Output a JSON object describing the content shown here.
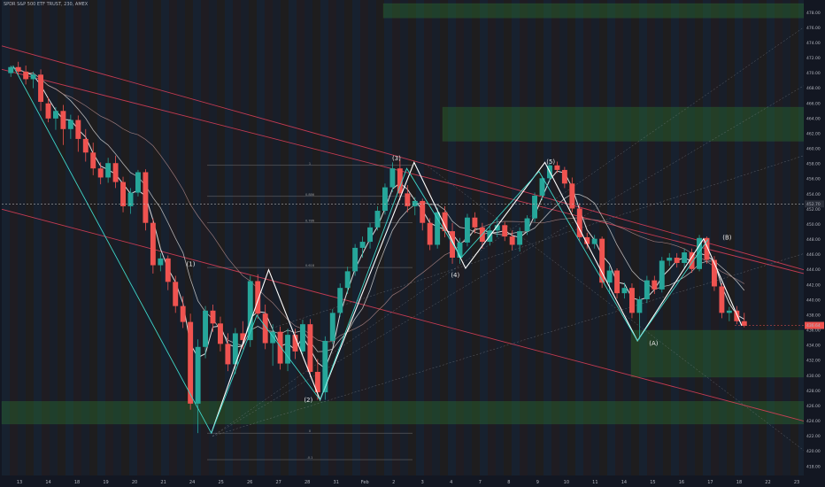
{
  "header": {
    "title": "SPDR S&P 500 ETF TRUST, 230, AMEX"
  },
  "colors": {
    "background": "#131722",
    "up": "#26a69a",
    "down": "#ef5350",
    "zone": "#2e7d32",
    "channel": "#e0405a",
    "cyan": "#3fd6c8",
    "white": "#ffffff",
    "price_tag": "#ef5350"
  },
  "chart_data": {
    "type": "candlestick",
    "y_axis": {
      "min": 416.8,
      "max": 479.2,
      "ticks": [
        418,
        420,
        422,
        424,
        426,
        428,
        430,
        432,
        434,
        436,
        438,
        440,
        442,
        444,
        446,
        448,
        450,
        452,
        454,
        456,
        458,
        460,
        462,
        464,
        466,
        468,
        470,
        472,
        474,
        476,
        478
      ]
    },
    "x_axis": {
      "labels": [
        "13",
        "14",
        "18",
        "19",
        "20",
        "21",
        "24",
        "25",
        "26",
        "27",
        "28",
        "31",
        "Feb",
        "2",
        "3",
        "4",
        "7",
        "8",
        "9",
        "10",
        "11",
        "14",
        "15",
        "16",
        "17",
        "18",
        "22",
        "23"
      ]
    },
    "last_price": "436.64",
    "ref_price": "452.70",
    "wave_labels": [
      {
        "text": "(1)",
        "x": 12.5,
        "y": 444.5
      },
      {
        "text": "(2)",
        "x": 20.5,
        "y": 426.5
      },
      {
        "text": "(3)",
        "x": 26.5,
        "y": 458.5
      },
      {
        "text": "(4)",
        "x": 30.5,
        "y": 443.0
      },
      {
        "text": "(5)",
        "x": 37,
        "y": 458
      },
      {
        "text": "(A)",
        "x": 44,
        "y": 434
      },
      {
        "text": "(B)",
        "x": 49,
        "y": 448
      }
    ],
    "fib_levels": [
      {
        "text": "1",
        "price": 457.8
      },
      {
        "text": "0.886",
        "price": 453.7
      },
      {
        "text": "0.786",
        "price": 450.2
      },
      {
        "text": "0.618",
        "price": 444.3
      },
      {
        "text": "0",
        "price": 422.4
      },
      {
        "text": "-0.1",
        "price": 418.9
      }
    ],
    "candles": [
      [
        470,
        471,
        469.5,
        470.8
      ],
      [
        470.8,
        471.5,
        469.8,
        470.2
      ],
      [
        470.2,
        471,
        468.5,
        469.2
      ],
      [
        469.2,
        470.2,
        468,
        469.8
      ],
      [
        469.8,
        470.5,
        465,
        466.2
      ],
      [
        466,
        466.8,
        463.5,
        464
      ],
      [
        464,
        465.5,
        462.5,
        465
      ],
      [
        465,
        465.8,
        460.5,
        462.6
      ],
      [
        462.6,
        464.5,
        461.3,
        463.8
      ],
      [
        463.8,
        464.4,
        459.6,
        461.3
      ],
      [
        461.3,
        462.6,
        458.3,
        459.5
      ],
      [
        459.5,
        460.8,
        456.5,
        457.4
      ],
      [
        457.4,
        458.2,
        455.3,
        456.2
      ],
      [
        456.2,
        458.8,
        455.5,
        458.1
      ],
      [
        458.1,
        459.1,
        454.8,
        455.6
      ],
      [
        455.6,
        456.3,
        451.6,
        452.4
      ],
      [
        452.4,
        454.8,
        451.4,
        454.2
      ],
      [
        454.2,
        457.2,
        453.7,
        456.9
      ],
      [
        456.9,
        457.3,
        449.2,
        450.2
      ],
      [
        450.2,
        450.8,
        443.5,
        444.6
      ],
      [
        444.6,
        446.2,
        443.8,
        445.5
      ],
      [
        445.5,
        445.9,
        441.3,
        442.4
      ],
      [
        442.4,
        443.2,
        438.3,
        439.2
      ],
      [
        439.2,
        440.5,
        436.3,
        437.1
      ],
      [
        437.1,
        438.2,
        425.5,
        426.3
      ],
      [
        426.3,
        434.8,
        422.4,
        433.8
      ],
      [
        433.8,
        439.2,
        432.3,
        438.6
      ],
      [
        438.6,
        439.4,
        435.8,
        436.9
      ],
      [
        436.9,
        437.8,
        433.2,
        434.2
      ],
      [
        434.2,
        435.6,
        430.6,
        431.5
      ],
      [
        431.5,
        436.3,
        430.2,
        435.6
      ],
      [
        435.6,
        437.2,
        433.5,
        434.7
      ],
      [
        434.7,
        443.2,
        433.8,
        442.5
      ],
      [
        442.5,
        443.4,
        437.5,
        438.2
      ],
      [
        438.2,
        439.4,
        433.5,
        434.3
      ],
      [
        434.3,
        436.8,
        431.3,
        435.8
      ],
      [
        435.8,
        436.5,
        430.8,
        431.6
      ],
      [
        431.6,
        436.2,
        430.6,
        435.4
      ],
      [
        435.4,
        436.2,
        432.2,
        433.2
      ],
      [
        433.2,
        437.4,
        432.8,
        436.8
      ],
      [
        436.8,
        437.5,
        429.8,
        430.5
      ],
      [
        430.5,
        432.2,
        426.8,
        427.8
      ],
      [
        427.8,
        435.2,
        426.8,
        434.6
      ],
      [
        434.6,
        438.8,
        434.2,
        438.3
      ],
      [
        438.3,
        442.2,
        437.8,
        441.6
      ],
      [
        441.6,
        444.4,
        440.8,
        443.8
      ],
      [
        443.8,
        447.4,
        443.2,
        446.9
      ],
      [
        446.9,
        448.4,
        445.6,
        447.7
      ],
      [
        447.7,
        450.2,
        446.8,
        449.6
      ],
      [
        449.6,
        452.4,
        449.2,
        451.8
      ],
      [
        451.8,
        455.4,
        451.3,
        454.9
      ],
      [
        454.9,
        458.2,
        454.3,
        457.4
      ],
      [
        457.4,
        458.6,
        453.2,
        454.1
      ],
      [
        454.1,
        455.2,
        451.6,
        452.4
      ],
      [
        452.4,
        453.6,
        451.2,
        453.1
      ],
      [
        453.1,
        453.4,
        449.2,
        450.2
      ],
      [
        450.2,
        450.8,
        446.6,
        447.3
      ],
      [
        447.3,
        452.2,
        446.8,
        451.6
      ],
      [
        451.6,
        452.4,
        448.3,
        449.1
      ],
      [
        449.1,
        450.2,
        444.8,
        445.6
      ],
      [
        445.6,
        448.2,
        444.8,
        447.6
      ],
      [
        447.6,
        451.4,
        447.1,
        450.9
      ],
      [
        450.9,
        451.6,
        448.8,
        449.6
      ],
      [
        449.6,
        450.2,
        446.8,
        447.7
      ],
      [
        447.7,
        449.8,
        447.2,
        449.2
      ],
      [
        449.2,
        450.8,
        448.3,
        449.9
      ],
      [
        449.9,
        450.3,
        447.8,
        448.4
      ],
      [
        448.4,
        449.2,
        446.6,
        447.3
      ],
      [
        447.3,
        449.6,
        446.4,
        449.1
      ],
      [
        449.1,
        451.2,
        448.6,
        450.8
      ],
      [
        450.8,
        454.2,
        450.3,
        453.8
      ],
      [
        453.8,
        456.4,
        453.2,
        456.1
      ],
      [
        456.1,
        458.2,
        455.6,
        457.8
      ],
      [
        457.8,
        458.3,
        456.8,
        457.2
      ],
      [
        457.2,
        457.6,
        454.8,
        455.4
      ],
      [
        455.4,
        456.2,
        451.6,
        452.1
      ],
      [
        452.1,
        452.8,
        447.8,
        448.3
      ],
      [
        448.3,
        448.9,
        446.8,
        447.4
      ],
      [
        447.4,
        448.6,
        446.8,
        448.1
      ],
      [
        448.1,
        448.4,
        441.6,
        442.3
      ],
      [
        442.3,
        444.5,
        440.8,
        443.9
      ],
      [
        443.9,
        444.2,
        440.2,
        440.9
      ],
      [
        440.9,
        442.3,
        440.2,
        441.6
      ],
      [
        441.6,
        442.2,
        437.6,
        438.3
      ],
      [
        438.3,
        440.5,
        434.8,
        440.1
      ],
      [
        440.1,
        443.2,
        439.6,
        442.6
      ],
      [
        442.6,
        443.2,
        440.8,
        441.4
      ],
      [
        441.4,
        445.7,
        441,
        445.2
      ],
      [
        445.2,
        446.2,
        444.5,
        445.6
      ],
      [
        445.6,
        446.2,
        444.3,
        444.9
      ],
      [
        444.9,
        446.8,
        444.2,
        446.3
      ],
      [
        446.3,
        446.8,
        443.6,
        444.1
      ],
      [
        444.1,
        448.6,
        443.8,
        448.2
      ],
      [
        448.2,
        448.4,
        444.8,
        445.3
      ],
      [
        445.3,
        445.8,
        441.2,
        441.8
      ],
      [
        441.8,
        442.2,
        437.6,
        438.3
      ],
      [
        438.3,
        439.1,
        437.2,
        438.6
      ],
      [
        438.6,
        439.2,
        436.8,
        437.2
      ],
      [
        437.2,
        438.3,
        436.4,
        436.6
      ]
    ]
  }
}
